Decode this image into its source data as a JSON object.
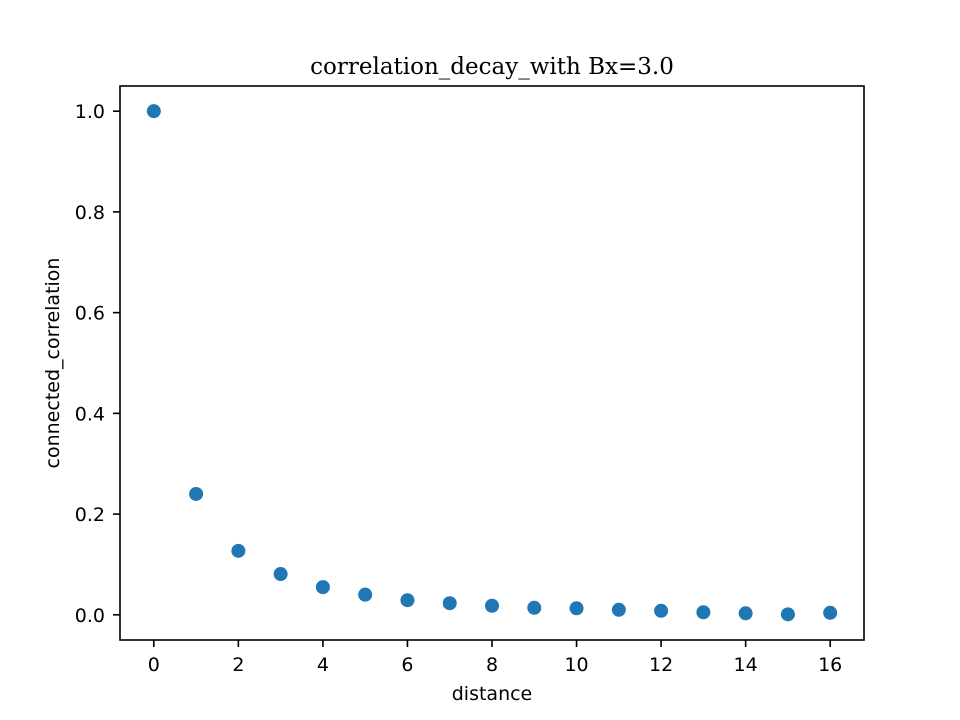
{
  "chart_data": {
    "type": "scatter",
    "title": "correlation_decay_with Bx=3.0",
    "xlabel": "distance",
    "ylabel": "connected_correlation",
    "xlim": [
      -0.8,
      16.8
    ],
    "ylim": [
      -0.05,
      1.05
    ],
    "x_ticks": [
      0,
      2,
      4,
      6,
      8,
      10,
      12,
      14,
      16
    ],
    "x_tick_labels": [
      "0",
      "2",
      "4",
      "6",
      "8",
      "10",
      "12",
      "14",
      "16"
    ],
    "y_ticks": [
      0.0,
      0.2,
      0.4,
      0.6,
      0.8,
      1.0
    ],
    "y_tick_labels": [
      "0.0",
      "0.2",
      "0.4",
      "0.6",
      "0.8",
      "1.0"
    ],
    "grid": false,
    "marker_color": "#1f77b4",
    "series": [
      {
        "x": [
          0,
          1,
          2,
          3,
          4,
          5,
          6,
          7,
          8,
          9,
          10,
          11,
          12,
          13,
          14,
          15,
          16
        ],
        "y": [
          1.0,
          0.24,
          0.127,
          0.081,
          0.055,
          0.04,
          0.029,
          0.023,
          0.018,
          0.014,
          0.013,
          0.01,
          0.008,
          0.005,
          0.003,
          0.001,
          0.004
        ]
      }
    ]
  }
}
